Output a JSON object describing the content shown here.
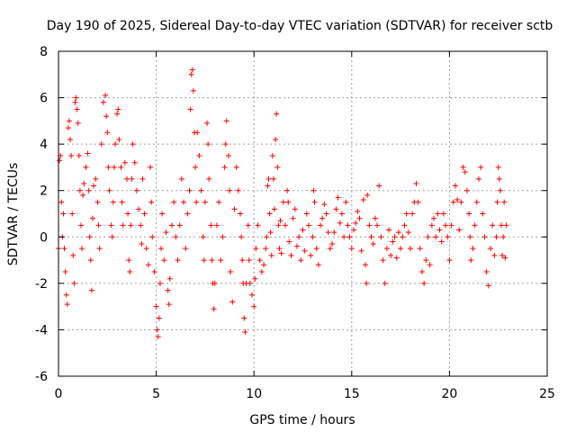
{
  "chart_data": {
    "type": "scatter",
    "title": "Day 190 of 2025, Sidereal Day-to-day VTEC variation (SDTVAR) for receiver sctb",
    "xlabel": "GPS time / hours",
    "ylabel": "SDTVAR / TECUs",
    "xlim": [
      0,
      25
    ],
    "ylim": [
      -6,
      8
    ],
    "xticks": [
      0,
      5,
      10,
      15,
      20,
      25
    ],
    "yticks": [
      -6,
      -4,
      -2,
      0,
      2,
      4,
      6,
      8
    ],
    "grid": true,
    "marker": "+",
    "series": [
      {
        "name": "SDTVAR",
        "color": "#ff0000",
        "points": [
          [
            0.0,
            -0.5
          ],
          [
            0.05,
            3.3
          ],
          [
            0.1,
            3.5
          ],
          [
            0.15,
            1.5
          ],
          [
            0.2,
            0.0
          ],
          [
            0.25,
            1.0
          ],
          [
            0.3,
            -0.5
          ],
          [
            0.35,
            -1.5
          ],
          [
            0.4,
            -2.5
          ],
          [
            0.45,
            -2.9
          ],
          [
            0.5,
            4.7
          ],
          [
            0.55,
            5.0
          ],
          [
            0.6,
            4.2
          ],
          [
            0.65,
            3.5
          ],
          [
            0.7,
            1.0
          ],
          [
            0.75,
            -0.8
          ],
          [
            0.8,
            -2.0
          ],
          [
            0.85,
            5.8
          ],
          [
            0.9,
            6.0
          ],
          [
            0.95,
            5.5
          ],
          [
            1.0,
            4.9
          ],
          [
            1.05,
            3.5
          ],
          [
            1.1,
            2.0
          ],
          [
            1.15,
            0.5
          ],
          [
            1.2,
            -0.5
          ],
          [
            1.25,
            1.8
          ],
          [
            1.3,
            2.3
          ],
          [
            1.4,
            3.0
          ],
          [
            1.5,
            3.6
          ],
          [
            1.55,
            2.0
          ],
          [
            1.6,
            0.0
          ],
          [
            1.65,
            -1.0
          ],
          [
            1.7,
            -2.3
          ],
          [
            1.75,
            0.8
          ],
          [
            1.8,
            2.2
          ],
          [
            1.9,
            2.5
          ],
          [
            2.0,
            1.5
          ],
          [
            2.05,
            0.5
          ],
          [
            2.1,
            -0.5
          ],
          [
            2.2,
            4.0
          ],
          [
            2.3,
            5.8
          ],
          [
            2.4,
            6.1
          ],
          [
            2.45,
            5.2
          ],
          [
            2.5,
            4.5
          ],
          [
            2.55,
            3.0
          ],
          [
            2.6,
            2.0
          ],
          [
            2.7,
            0.5
          ],
          [
            2.75,
            0.0
          ],
          [
            2.8,
            1.5
          ],
          [
            2.85,
            3.0
          ],
          [
            2.9,
            4.0
          ],
          [
            3.0,
            5.3
          ],
          [
            3.05,
            5.5
          ],
          [
            3.1,
            4.2
          ],
          [
            3.2,
            3.0
          ],
          [
            3.25,
            1.5
          ],
          [
            3.3,
            0.5
          ],
          [
            3.4,
            3.2
          ],
          [
            3.5,
            2.5
          ],
          [
            3.55,
            1.0
          ],
          [
            3.6,
            -1.0
          ],
          [
            3.65,
            -1.5
          ],
          [
            3.7,
            0.5
          ],
          [
            3.75,
            2.5
          ],
          [
            3.8,
            4.0
          ],
          [
            3.9,
            3.2
          ],
          [
            4.0,
            2.0
          ],
          [
            4.1,
            1.2
          ],
          [
            4.2,
            0.5
          ],
          [
            4.25,
            -0.3
          ],
          [
            4.3,
            2.5
          ],
          [
            4.4,
            1.0
          ],
          [
            4.5,
            -0.5
          ],
          [
            4.6,
            -1.2
          ],
          [
            4.7,
            3.0
          ],
          [
            4.75,
            1.5
          ],
          [
            4.8,
            0.0
          ],
          [
            4.9,
            -1.5
          ],
          [
            5.0,
            -3.0
          ],
          [
            5.05,
            -4.0
          ],
          [
            5.1,
            -4.3
          ],
          [
            5.15,
            -3.5
          ],
          [
            5.2,
            -2.0
          ],
          [
            5.25,
            -0.5
          ],
          [
            5.3,
            1.0
          ],
          [
            5.4,
            -1.0
          ],
          [
            5.5,
            0.2
          ],
          [
            5.6,
            -2.3
          ],
          [
            5.65,
            -2.9
          ],
          [
            5.7,
            -1.8
          ],
          [
            5.8,
            0.5
          ],
          [
            5.9,
            1.5
          ],
          [
            6.0,
            0.0
          ],
          [
            6.1,
            -1.0
          ],
          [
            6.2,
            0.5
          ],
          [
            6.3,
            2.5
          ],
          [
            6.4,
            1.5
          ],
          [
            6.5,
            -0.5
          ],
          [
            6.6,
            1.0
          ],
          [
            6.7,
            2.0
          ],
          [
            6.75,
            5.5
          ],
          [
            6.8,
            7.0
          ],
          [
            6.85,
            7.2
          ],
          [
            6.9,
            6.3
          ],
          [
            6.95,
            4.5
          ],
          [
            7.0,
            3.0
          ],
          [
            7.05,
            1.5
          ],
          [
            7.1,
            4.5
          ],
          [
            7.2,
            3.5
          ],
          [
            7.3,
            2.0
          ],
          [
            7.4,
            0.0
          ],
          [
            7.45,
            -1.0
          ],
          [
            7.5,
            1.5
          ],
          [
            7.6,
            4.9
          ],
          [
            7.65,
            4.0
          ],
          [
            7.7,
            2.5
          ],
          [
            7.8,
            0.5
          ],
          [
            7.85,
            -1.0
          ],
          [
            7.9,
            -2.0
          ],
          [
            7.95,
            -3.1
          ],
          [
            8.0,
            -2.0
          ],
          [
            8.1,
            0.5
          ],
          [
            8.2,
            1.5
          ],
          [
            8.3,
            -1.0
          ],
          [
            8.4,
            0.0
          ],
          [
            8.5,
            3.0
          ],
          [
            8.55,
            4.0
          ],
          [
            8.6,
            5.0
          ],
          [
            8.7,
            3.5
          ],
          [
            8.75,
            2.0
          ],
          [
            8.8,
            -1.5
          ],
          [
            8.9,
            -2.8
          ],
          [
            9.0,
            1.2
          ],
          [
            9.1,
            3.0
          ],
          [
            9.2,
            2.0
          ],
          [
            9.3,
            1.0
          ],
          [
            9.35,
            0.0
          ],
          [
            9.4,
            -1.0
          ],
          [
            9.45,
            -2.0
          ],
          [
            9.5,
            -3.5
          ],
          [
            9.55,
            -4.1
          ],
          [
            9.6,
            -2.0
          ],
          [
            9.7,
            0.5
          ],
          [
            9.75,
            -1.0
          ],
          [
            9.8,
            -2.0
          ],
          [
            9.9,
            -2.5
          ],
          [
            10.0,
            -3.0
          ],
          [
            10.05,
            -1.8
          ],
          [
            10.1,
            -0.5
          ],
          [
            10.2,
            0.5
          ],
          [
            10.3,
            -1.0
          ],
          [
            10.4,
            -1.5
          ],
          [
            10.5,
            -1.2
          ],
          [
            10.6,
            -0.5
          ],
          [
            10.65,
            0.0
          ],
          [
            10.7,
            2.2
          ],
          [
            10.75,
            2.5
          ],
          [
            10.8,
            1.0
          ],
          [
            10.85,
            0.2
          ],
          [
            10.9,
            -0.8
          ],
          [
            10.95,
            3.5
          ],
          [
            11.0,
            2.5
          ],
          [
            11.05,
            1.2
          ],
          [
            11.1,
            4.2
          ],
          [
            11.15,
            5.3
          ],
          [
            11.2,
            3.0
          ],
          [
            11.25,
            0.5
          ],
          [
            11.3,
            -0.5
          ],
          [
            11.35,
            0.7
          ],
          [
            11.4,
            -0.7
          ],
          [
            11.5,
            1.5
          ],
          [
            11.6,
            0.5
          ],
          [
            11.7,
            2.0
          ],
          [
            11.75,
            1.5
          ],
          [
            11.8,
            -0.2
          ],
          [
            11.9,
            -0.8
          ],
          [
            12.0,
            0.8
          ],
          [
            12.1,
            1.2
          ],
          [
            12.2,
            -0.4
          ],
          [
            12.3,
            0.0
          ],
          [
            12.4,
            -1.0
          ],
          [
            12.5,
            0.3
          ],
          [
            12.6,
            -0.6
          ],
          [
            12.7,
            1.0
          ],
          [
            12.8,
            0.5
          ],
          [
            12.9,
            -0.8
          ],
          [
            13.0,
            0.0
          ],
          [
            13.05,
            2.0
          ],
          [
            13.1,
            1.5
          ],
          [
            13.2,
            -0.5
          ],
          [
            13.3,
            -1.2
          ],
          [
            13.4,
            0.5
          ],
          [
            13.5,
            0.8
          ],
          [
            13.6,
            1.4
          ],
          [
            13.7,
            1.0
          ],
          [
            13.8,
            0.2
          ],
          [
            13.9,
            -0.5
          ],
          [
            14.0,
            -0.3
          ],
          [
            14.1,
            0.2
          ],
          [
            14.2,
            1.2
          ],
          [
            14.3,
            1.7
          ],
          [
            14.4,
            0.6
          ],
          [
            14.5,
            1.0
          ],
          [
            14.6,
            0.0
          ],
          [
            14.7,
            1.5
          ],
          [
            14.8,
            0.5
          ],
          [
            14.9,
            0.0
          ],
          [
            15.0,
            -0.5
          ],
          [
            15.1,
            0.3
          ],
          [
            15.2,
            0.6
          ],
          [
            15.3,
            1.1
          ],
          [
            15.4,
            0.8
          ],
          [
            15.5,
            -0.6
          ],
          [
            15.6,
            1.6
          ],
          [
            15.7,
            -1.2
          ],
          [
            15.75,
            -2.0
          ],
          [
            15.8,
            1.8
          ],
          [
            15.9,
            0.5
          ],
          [
            16.0,
            0.0
          ],
          [
            16.1,
            -0.3
          ],
          [
            16.2,
            0.8
          ],
          [
            16.3,
            0.5
          ],
          [
            16.4,
            2.2
          ],
          [
            16.5,
            0.0
          ],
          [
            16.6,
            -1.0
          ],
          [
            16.7,
            -2.0
          ],
          [
            16.8,
            -0.5
          ],
          [
            16.9,
            0.3
          ],
          [
            17.0,
            -0.8
          ],
          [
            17.1,
            -0.2
          ],
          [
            17.2,
            0.0
          ],
          [
            17.3,
            -0.9
          ],
          [
            17.4,
            0.2
          ],
          [
            17.5,
            -0.5
          ],
          [
            17.6,
            0.0
          ],
          [
            17.7,
            0.5
          ],
          [
            17.8,
            1.0
          ],
          [
            17.9,
            0.2
          ],
          [
            18.0,
            -0.5
          ],
          [
            18.1,
            1.0
          ],
          [
            18.2,
            1.5
          ],
          [
            18.3,
            2.3
          ],
          [
            18.4,
            1.5
          ],
          [
            18.5,
            -0.5
          ],
          [
            18.6,
            -1.5
          ],
          [
            18.7,
            -2.0
          ],
          [
            18.8,
            -1.0
          ],
          [
            18.9,
            0.0
          ],
          [
            19.0,
            -1.2
          ],
          [
            19.1,
            0.5
          ],
          [
            19.2,
            0.8
          ],
          [
            19.3,
            0.0
          ],
          [
            19.4,
            1.0
          ],
          [
            19.5,
            0.3
          ],
          [
            19.6,
            -0.2
          ],
          [
            19.7,
            1.0
          ],
          [
            19.8,
            0.5
          ],
          [
            19.9,
            0.0
          ],
          [
            20.0,
            -1.0
          ],
          [
            20.1,
            0.5
          ],
          [
            20.2,
            1.5
          ],
          [
            20.3,
            2.2
          ],
          [
            20.4,
            1.6
          ],
          [
            20.5,
            0.3
          ],
          [
            20.6,
            1.5
          ],
          [
            20.7,
            3.0
          ],
          [
            20.8,
            2.8
          ],
          [
            20.9,
            2.0
          ],
          [
            21.0,
            1.0
          ],
          [
            21.05,
            0.0
          ],
          [
            21.1,
            -1.0
          ],
          [
            21.2,
            -0.5
          ],
          [
            21.3,
            0.5
          ],
          [
            21.4,
            1.5
          ],
          [
            21.5,
            2.5
          ],
          [
            21.6,
            3.0
          ],
          [
            21.7,
            1.0
          ],
          [
            21.8,
            0.0
          ],
          [
            21.9,
            -1.5
          ],
          [
            22.0,
            -2.1
          ],
          [
            22.1,
            -0.5
          ],
          [
            22.2,
            0.5
          ],
          [
            22.3,
            -0.8
          ],
          [
            22.4,
            0.0
          ],
          [
            22.45,
            1.5
          ],
          [
            22.5,
            3.0
          ],
          [
            22.55,
            2.5
          ],
          [
            22.6,
            2.0
          ],
          [
            22.65,
            0.5
          ],
          [
            22.7,
            -0.8
          ],
          [
            22.75,
            0.0
          ],
          [
            22.8,
            1.5
          ],
          [
            22.85,
            -0.9
          ],
          [
            22.9,
            0.5
          ]
        ]
      }
    ]
  }
}
